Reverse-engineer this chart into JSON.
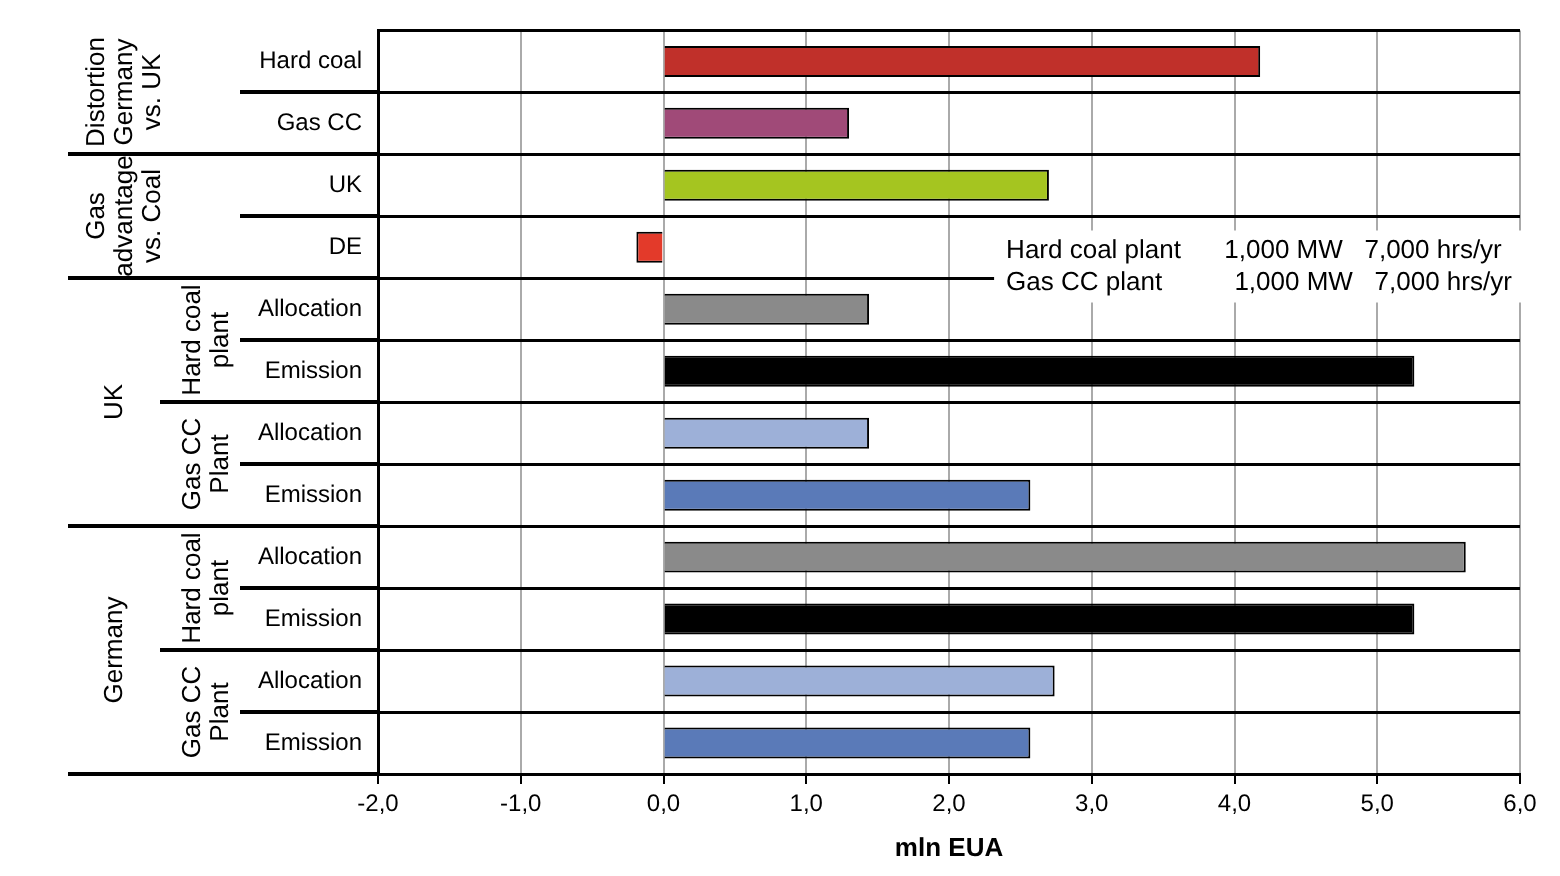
{
  "chart_data": {
    "type": "bar",
    "orientation": "horizontal",
    "xlabel": "mln EUA",
    "categories": [
      "Hard coal",
      "Gas CC",
      "UK",
      "DE",
      "Allocation",
      "Emission",
      "Allocation",
      "Emission",
      "Allocation",
      "Emission",
      "Allocation",
      "Emission"
    ],
    "values": [
      4.18,
      1.3,
      2.7,
      -0.19,
      1.44,
      5.26,
      1.44,
      2.57,
      5.62,
      5.26,
      2.74,
      2.57
    ],
    "colors": [
      "#c0302a",
      "#a04a78",
      "#a5c520",
      "#e33a2a",
      "#8a8a8a",
      "#000000",
      "#9db0d8",
      "#5a7ab8",
      "#8a8a8a",
      "#000000",
      "#9db0d8",
      "#5a7ab8"
    ],
    "xlim": [
      -2,
      6
    ],
    "xticks": [
      {
        "value": -2,
        "label": "-2,0"
      },
      {
        "value": -1,
        "label": "-1,0"
      },
      {
        "value": 0,
        "label": "0,0"
      },
      {
        "value": 1,
        "label": "1,0"
      },
      {
        "value": 2,
        "label": "2,0"
      },
      {
        "value": 3,
        "label": "3,0"
      },
      {
        "value": 4,
        "label": "4,0"
      },
      {
        "value": 5,
        "label": "5,0"
      },
      {
        "value": 6,
        "label": "6,0"
      }
    ],
    "grid": true,
    "legend": false,
    "annotations": [
      "Distortion Germany vs. UK",
      "Gas advantage vs. Coal",
      "UK",
      "Hard coal plant",
      "Gas CC Plant",
      "Germany",
      "Hard coal plant",
      "Gas CC Plant",
      "Hard coal plant      1,000 MW   7,000 hrs/yr",
      "Gas CC plant          1,000 MW   7,000 hrs/yr"
    ]
  }
}
